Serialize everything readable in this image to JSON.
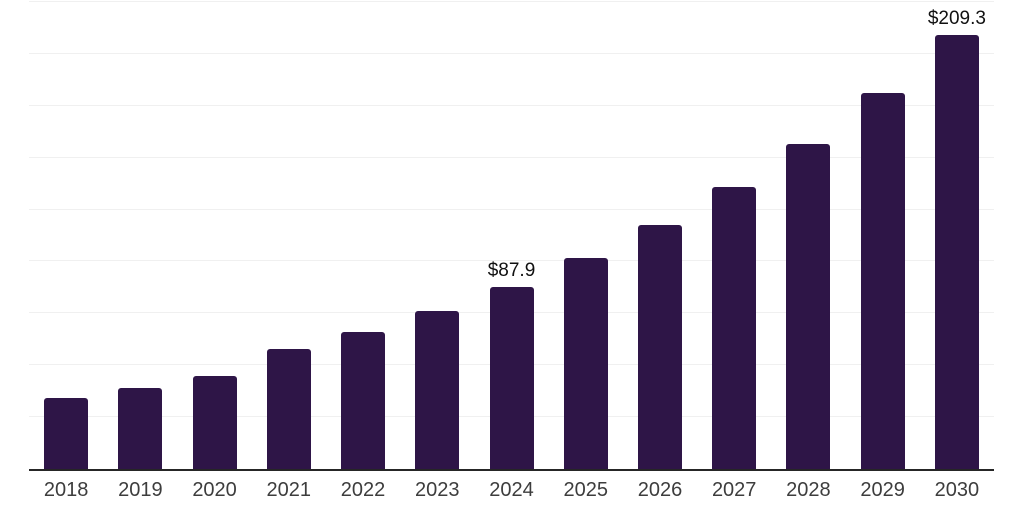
{
  "chart_data": {
    "type": "bar",
    "categories": [
      "2018",
      "2019",
      "2020",
      "2021",
      "2022",
      "2023",
      "2024",
      "2025",
      "2026",
      "2027",
      "2028",
      "2029",
      "2030"
    ],
    "values": [
      34.2,
      39.0,
      44.9,
      57.6,
      66.0,
      76.2,
      87.9,
      101.6,
      117.4,
      135.7,
      156.8,
      181.2,
      209.3
    ],
    "data_labels": {
      "2024": "$87.9",
      "2030": "$209.3"
    },
    "bar_color": "#2e1547",
    "value_label_color": "#111111",
    "tick_label_color": "#3d3d3d",
    "grid_color": "#f0f0f0",
    "axis_color": "#262626",
    "background_color": "#ffffff",
    "ylim": [
      0,
      226
    ],
    "grid_step": 25,
    "grid": true,
    "legend": false,
    "value_prefix": "$"
  }
}
